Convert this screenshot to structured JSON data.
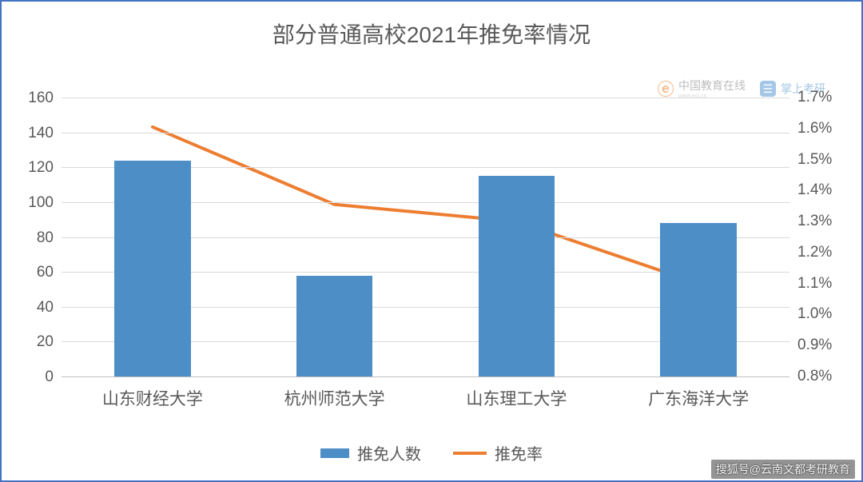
{
  "title": {
    "text": "部分普通高校2021年推免率情况",
    "fontsize": 28,
    "color": "#595959"
  },
  "watermark": {
    "left": {
      "icon_text": "e",
      "main": "中国教育在线",
      "sub": "www.eol.cn"
    },
    "right": {
      "icon_text": "☰",
      "main": "掌上考研"
    }
  },
  "chart": {
    "type": "bar+line",
    "categories": [
      "山东财经大学",
      "杭州师范大学",
      "山东理工大学",
      "广东海洋大学"
    ],
    "bars": {
      "label": "推免人数",
      "values": [
        124,
        58,
        115,
        88
      ],
      "color": "#4e8ec7",
      "width_frac": 0.42
    },
    "line": {
      "label": "推免率",
      "values_pct": [
        1.605,
        1.355,
        1.3,
        1.1
      ],
      "color": "#ed7d31",
      "line_width": 4,
      "marker": "none"
    },
    "y_left": {
      "min": 0,
      "max": 160,
      "step": 20,
      "labels": [
        "0",
        "20",
        "40",
        "60",
        "80",
        "100",
        "120",
        "140",
        "160"
      ],
      "fontsize": 19
    },
    "y_right": {
      "min": 0.8,
      "max": 1.7,
      "step": 0.1,
      "labels": [
        "0.8%",
        "0.9%",
        "1.0%",
        "1.1%",
        "1.2%",
        "1.3%",
        "1.4%",
        "1.5%",
        "1.6%",
        "1.7%"
      ],
      "fontsize": 19
    },
    "x_axis": {
      "fontsize": 21
    },
    "grid_color": "#d9d9d9",
    "bottom_axis_color": "#bfbfbf",
    "background_color": "#ffffff"
  },
  "legend": {
    "items": [
      {
        "kind": "bar",
        "label": "推免人数",
        "color": "#4e8ec7"
      },
      {
        "kind": "line",
        "label": "推免率",
        "color": "#ed7d31"
      }
    ],
    "fontsize": 20
  },
  "footer": {
    "text": "搜狐号@云南文都考研教育",
    "fontsize": 14
  }
}
